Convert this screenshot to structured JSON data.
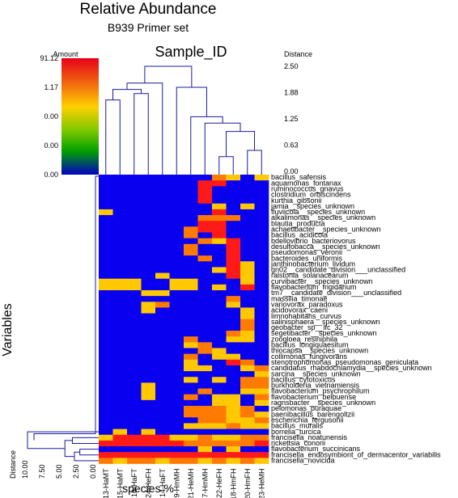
{
  "chart_data": {
    "type": "heatmap",
    "title": "Relative Abundance",
    "subtitle": "B939 Primer set",
    "column_axis_title": "Sample_ID",
    "row_axis_title": "Variables",
    "x_label": "species %",
    "legend": {
      "title": "Amount",
      "labels": [
        "91.12",
        "1.17",
        "0.00",
        "0.00",
        "0.00"
      ],
      "colors": [
        "#e8001a",
        "#f06010",
        "#ffd000",
        "#7fc800",
        "#00a000",
        "#0000c0"
      ]
    },
    "column_distance_axis": {
      "title": "Distance",
      "ticks": [
        "2.50",
        "1.88",
        "1.25",
        "0.63",
        "0.00"
      ]
    },
    "row_distance_axis": {
      "title": "Distance",
      "ticks": [
        "10.00",
        "7.50",
        "5.00",
        "2.50",
        "0.00"
      ]
    },
    "colors": {
      "zero": "#0a00f0",
      "low": "#ffc800",
      "mid": "#ff7a00",
      "high": "#ff1a1a",
      "line": "#1a1aa0"
    },
    "columns": [
      "13-HaMT",
      "15-HaMT",
      "16-HaFT",
      "24-HeFH",
      "14-HaFT",
      "19-HmMH",
      "21-HeMH",
      "17-HmMH",
      "22-HeFH",
      "18-HmFH",
      "20-HmFH",
      "23-HeMH"
    ],
    "rows": [
      "bacillus_safensis",
      "aquamonas_fontanax",
      "ruminococcus_gnavus",
      "clostridium_orbiscindens",
      "kurthia_gibsonii",
      "jamia__species_unknown",
      "fluviicola__species_unknown",
      "alkalimonas__species_unknown",
      "blautia_producta",
      "achaetibacter__species_unknown",
      "bacillus_acidicola",
      "bdellovibrio_bacteriovorus",
      "desulfobacca__species_unknown",
      "pseudomonas_veronii",
      "bacteroides_uniformis",
      "janthinobacterium_lividum",
      "gn02__candidate_division___unclassified",
      "ralstonia_solanacearum",
      "curvibacter__species_unknown",
      "flavobacterium_frigidarium",
      "tm7__candidate_division___unclassified",
      "massilia_timonae",
      "variovorax_paradoxus",
      "acidovorax_caeni",
      "limnohabitans_curvus",
      "salinisphaera__species_unknown",
      "geobacter_sp__lfc_32",
      "segetibacter__species_unknown",
      "zoogloea_resiniphila",
      "bacillus_longiquaesitum",
      "thiocapsa__species_unknown",
      "collimonas_fungivorans",
      "stenotrophomonas_pseudomonas_geniculata",
      "candidatus_rhabdochlamydia__species_unknown",
      "sarcina__species_unknown",
      "bacillus_cytotoxicus",
      "burkholderia_vietnamiensis",
      "flavobacterium_psychrophilum",
      "flavobacterium_beibuense",
      "ragnsbacter__species_unknown",
      "pelomonas_puraquae",
      "paenibacillus_barengoltzii",
      "escherichia_fergusonii",
      "bacillus_muralis",
      "borrelia_turcica",
      "francisella_noatunensis",
      "rickettsia_conorii",
      "flavobacterium_succinicans",
      "francisella_endosymbiont_of_dermacentor_variabilis",
      "francisella_novicida"
    ],
    "cells": [
      "000000002101",
      "000000033000",
      "000000030000",
      "000000030000",
      "000000030000",
      "000000001010",
      "100000003000",
      "000000022200",
      "000000033000",
      "000000233000",
      "000000203000",
      "000000021300",
      "000000200300",
      "000000200300",
      "000000020300",
      "000000000310",
      "000000001310",
      "000010000310",
      "111001100010",
      "111001101030",
      "000110000000",
      "000000000200",
      "000120000100",
      "000100000010",
      "000000000010",
      "000000000020",
      "000000000020",
      "000000000210",
      "000000200110",
      "000000120000",
      "000000021000",
      "000000201100",
      "000000100320",
      "000000110012",
      "000000000001",
      "000000101022",
      "000100000022",
      "000100020011",
      "000100201102",
      "000000001101",
      "000000222120",
      "000000222121",
      "000000022112",
      "000000111211",
      "010100000000",
      "133331121122",
      "333333222223",
      "000000010100",
      "333333333333",
      "212212212121"
    ],
    "column_merges": [
      [
        8,
        9,
        0.35
      ],
      [
        10,
        11,
        0.5
      ],
      [
        -1,
        -2,
        0.95
      ],
      [
        7,
        -3,
        1.15
      ],
      [
        6,
        -4,
        1.3
      ],
      [
        0,
        1,
        1.7
      ],
      [
        2,
        3,
        1.85
      ],
      [
        -6,
        -7,
        1.95
      ],
      [
        5,
        -5,
        2.0
      ],
      [
        4,
        -8,
        2.1
      ],
      [
        -9,
        -10,
        2.5
      ]
    ],
    "row_merges": [
      [
        47,
        48,
        2.3
      ],
      [
        -1,
        49,
        3.1
      ],
      [
        45,
        46,
        3.4
      ],
      [
        -2,
        -3,
        4.5
      ],
      [
        -4,
        44,
        10.0
      ]
    ]
  }
}
